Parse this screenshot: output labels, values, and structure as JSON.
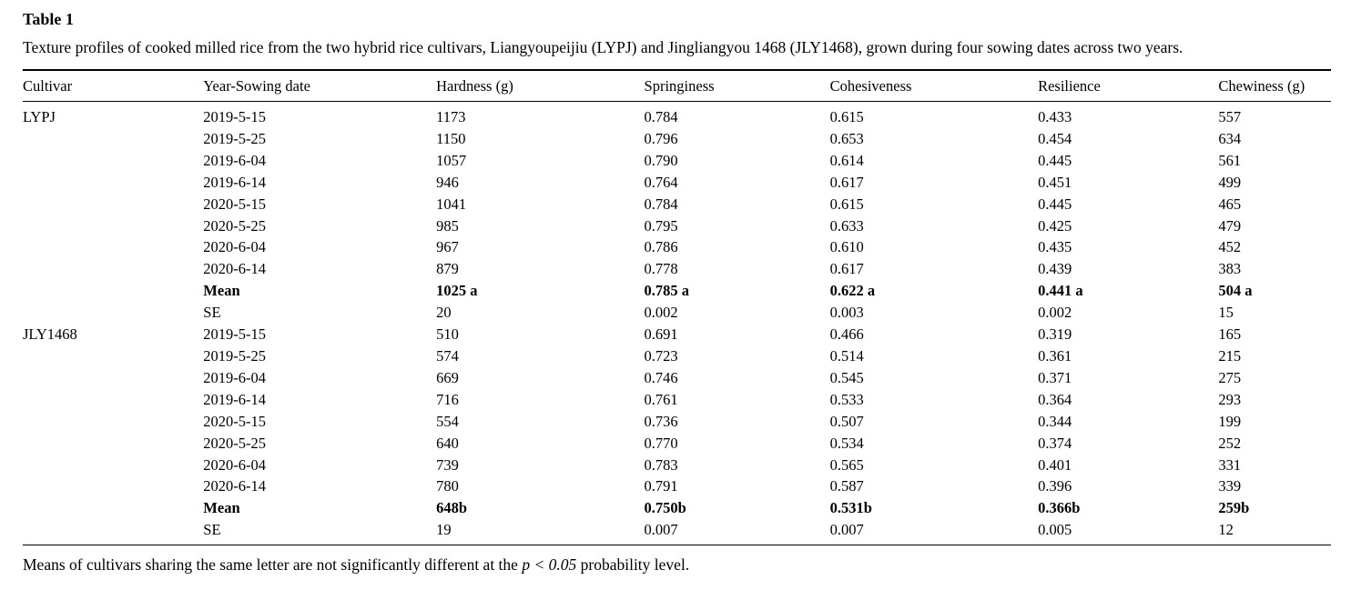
{
  "table": {
    "label": "Table 1",
    "caption": "Texture profiles of cooked milled rice from the two hybrid rice cultivars, Liangyoupeijiu (LYPJ) and Jingliangyou 1468 (JLY1468), grown during four sowing dates across two years.",
    "columns": [
      "Cultivar",
      "Year-Sowing date",
      "Hardness (g)",
      "Springiness",
      "Cohesiveness",
      "Resilience",
      "Chewiness (g)"
    ],
    "rows": [
      {
        "cells": [
          "LYPJ",
          "2019-5-15",
          "1173",
          "0.784",
          "0.615",
          "0.433",
          "557"
        ],
        "bold": false
      },
      {
        "cells": [
          "",
          "2019-5-25",
          "1150",
          "0.796",
          "0.653",
          "0.454",
          "634"
        ],
        "bold": false
      },
      {
        "cells": [
          "",
          "2019-6-04",
          "1057",
          "0.790",
          "0.614",
          "0.445",
          "561"
        ],
        "bold": false
      },
      {
        "cells": [
          "",
          "2019-6-14",
          "946",
          "0.764",
          "0.617",
          "0.451",
          "499"
        ],
        "bold": false
      },
      {
        "cells": [
          "",
          "2020-5-15",
          "1041",
          "0.784",
          "0.615",
          "0.445",
          "465"
        ],
        "bold": false
      },
      {
        "cells": [
          "",
          "2020-5-25",
          "985",
          "0.795",
          "0.633",
          "0.425",
          "479"
        ],
        "bold": false
      },
      {
        "cells": [
          "",
          "2020-6-04",
          "967",
          "0.786",
          "0.610",
          "0.435",
          "452"
        ],
        "bold": false
      },
      {
        "cells": [
          "",
          "2020-6-14",
          "879",
          "0.778",
          "0.617",
          "0.439",
          "383"
        ],
        "bold": false
      },
      {
        "cells": [
          "",
          "Mean",
          "1025 a",
          "0.785 a",
          "0.622 a",
          "0.441 a",
          "504 a"
        ],
        "bold": true
      },
      {
        "cells": [
          "",
          "SE",
          "20",
          "0.002",
          "0.003",
          "0.002",
          "15"
        ],
        "bold": false
      },
      {
        "cells": [
          "JLY1468",
          "2019-5-15",
          "510",
          "0.691",
          "0.466",
          "0.319",
          "165"
        ],
        "bold": false
      },
      {
        "cells": [
          "",
          "2019-5-25",
          "574",
          "0.723",
          "0.514",
          "0.361",
          "215"
        ],
        "bold": false
      },
      {
        "cells": [
          "",
          "2019-6-04",
          "669",
          "0.746",
          "0.545",
          "0.371",
          "275"
        ],
        "bold": false
      },
      {
        "cells": [
          "",
          "2019-6-14",
          "716",
          "0.761",
          "0.533",
          "0.364",
          "293"
        ],
        "bold": false
      },
      {
        "cells": [
          "",
          "2020-5-15",
          "554",
          "0.736",
          "0.507",
          "0.344",
          "199"
        ],
        "bold": false
      },
      {
        "cells": [
          "",
          "2020-5-25",
          "640",
          "0.770",
          "0.534",
          "0.374",
          "252"
        ],
        "bold": false
      },
      {
        "cells": [
          "",
          "2020-6-04",
          "739",
          "0.783",
          "0.565",
          "0.401",
          "331"
        ],
        "bold": false
      },
      {
        "cells": [
          "",
          "2020-6-14",
          "780",
          "0.791",
          "0.587",
          "0.396",
          "339"
        ],
        "bold": false
      },
      {
        "cells": [
          "",
          "Mean",
          "648b",
          "0.750b",
          "0.531b",
          "0.366b",
          "259b"
        ],
        "bold": true
      },
      {
        "cells": [
          "",
          "SE",
          "19",
          "0.007",
          "0.007",
          "0.005",
          "12"
        ],
        "bold": false
      }
    ],
    "footnote": {
      "pre": "Means of cultivars sharing the same letter are not significantly different at the ",
      "italic": "p < 0.05",
      "post": " probability level."
    }
  }
}
